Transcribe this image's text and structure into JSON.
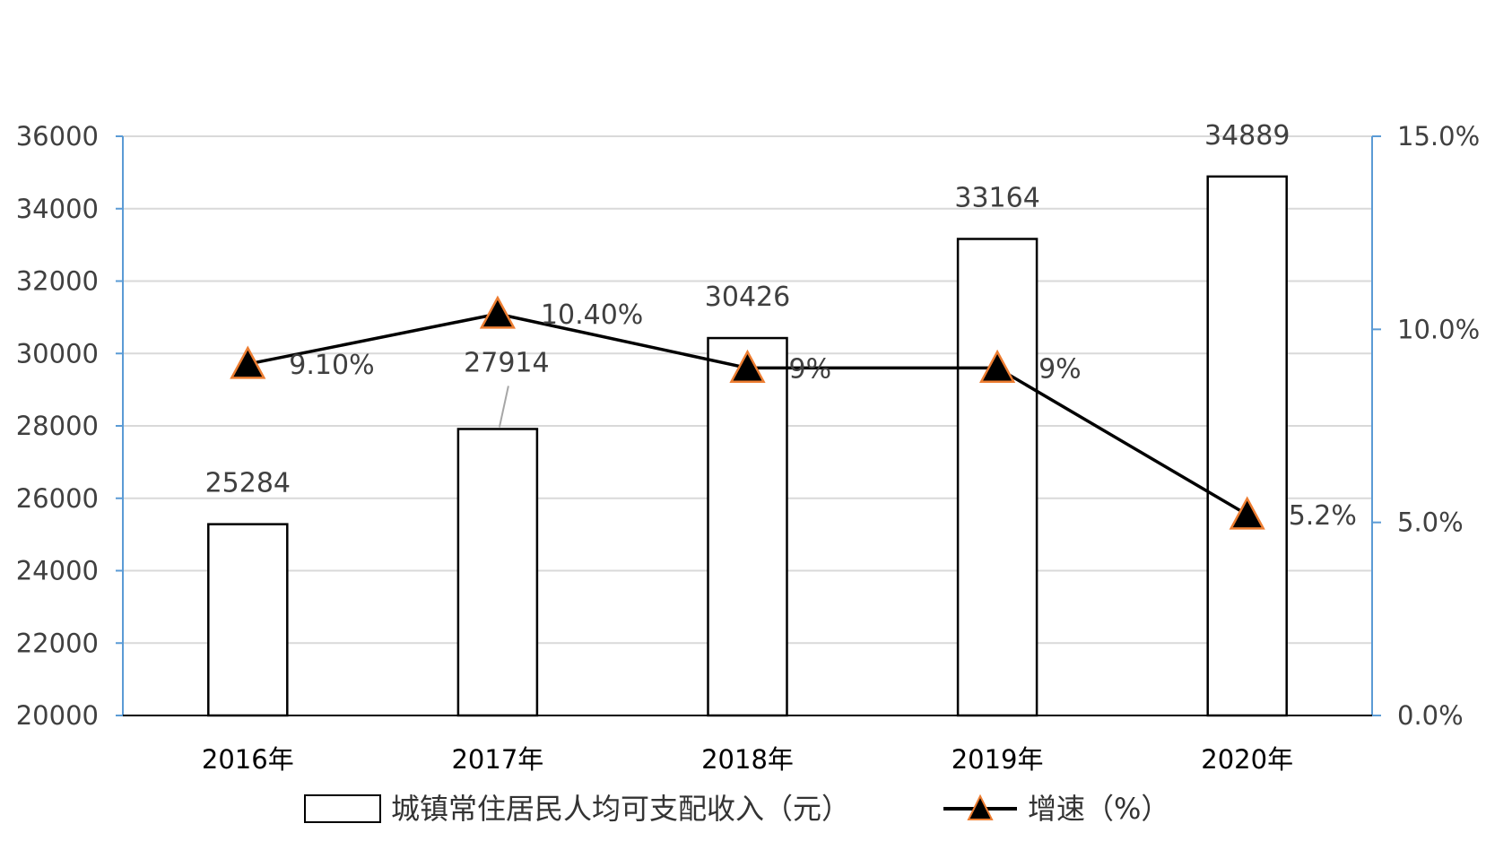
{
  "chart_data": {
    "type": "bar",
    "categories": [
      "2016年",
      "2017年",
      "2018年",
      "2019年",
      "2020年"
    ],
    "series": [
      {
        "name": "城镇常住居民人均可支配收入（元）",
        "type": "bar",
        "axis": "left",
        "values": [
          25284,
          27914,
          30426,
          33164,
          34889
        ],
        "labels": [
          "25284",
          "27914",
          "30426",
          "33164",
          "34889"
        ]
      },
      {
        "name": "增速（%）",
        "type": "line",
        "axis": "right",
        "marker": "triangle",
        "values": [
          9.1,
          10.4,
          9.0,
          9.0,
          5.2
        ],
        "labels": [
          "9.10%",
          "10.40%",
          "9%",
          "9%",
          "5.2%"
        ]
      }
    ],
    "y_left": {
      "range": [
        20000,
        36000
      ],
      "ticks": [
        "20000",
        "22000",
        "24000",
        "26000",
        "28000",
        "30000",
        "32000",
        "34000",
        "36000"
      ]
    },
    "y_right": {
      "range": [
        0,
        15
      ],
      "ticks": [
        "0.0%",
        "5.0%",
        "10.0%",
        "15.0%"
      ]
    },
    "grid": true,
    "legend_position": "bottom",
    "colors": {
      "bar_fill": "#ffffff",
      "bar_stroke": "#000000",
      "line": "#000000",
      "marker_fill": "#000000",
      "marker_stroke": "#ed7d31",
      "grid": "#d9d9d9",
      "right_axis": "#5b9bd5",
      "left_axis": "#5b9bd5"
    }
  }
}
